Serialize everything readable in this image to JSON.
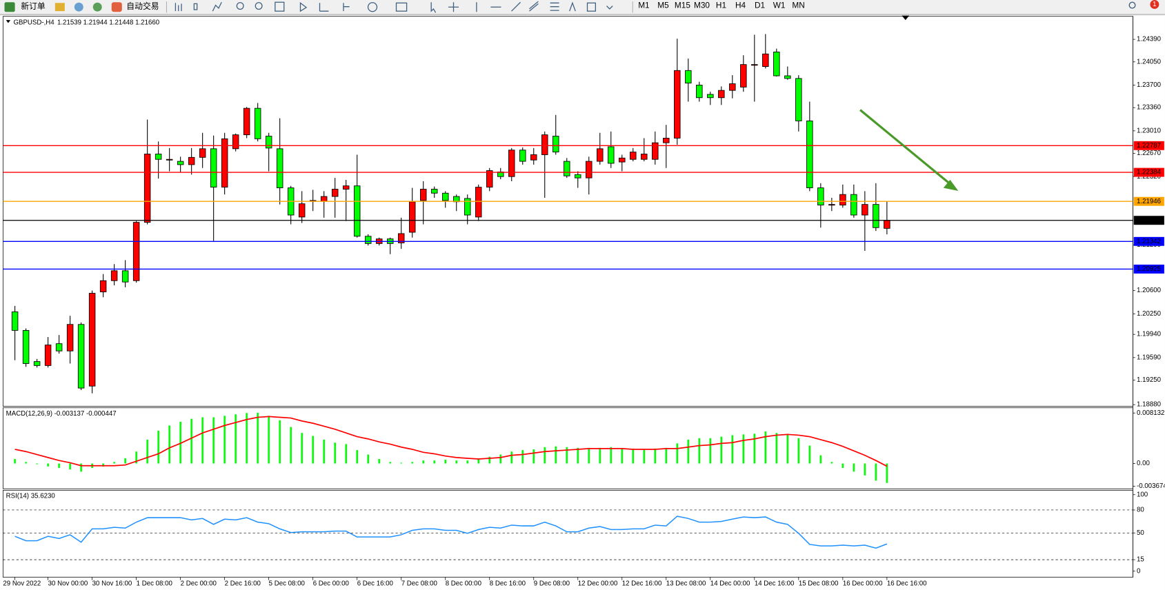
{
  "toolbar": {
    "new_order": "新订单",
    "auto_trading": "自动交易",
    "timeframes": [
      "M1",
      "M5",
      "M15",
      "M30",
      "H1",
      "H4",
      "D1",
      "W1",
      "MN"
    ],
    "notifications": "1"
  },
  "chart_data": [
    {
      "type": "candlestick",
      "title": "GBPUSD-,H4",
      "subtitle": "1.21539 1.21944 1.21448 1.21660",
      "categories": [
        "29 Nov 2022",
        null,
        null,
        "30 Nov 00:00",
        null,
        null,
        null,
        "30 Nov 16:00",
        null,
        null,
        null,
        "1 Dec 08:00",
        null,
        null,
        null,
        "2 Dec 00:00",
        null,
        null,
        null,
        "2 Dec 16:00",
        null,
        null,
        null,
        "5 Dec 08:00",
        null,
        null,
        null,
        "6 Dec 00:00",
        null,
        null,
        null,
        "6 Dec 16:00",
        null,
        null,
        null,
        "7 Dec 08:00",
        null,
        null,
        null,
        "8 Dec 00:00",
        null,
        null,
        null,
        "8 Dec 16:00",
        null,
        null,
        null,
        "9 Dec 08:00",
        null,
        null,
        null,
        "12 Dec 00:00",
        null,
        null,
        null,
        "12 Dec 16:00",
        null,
        null,
        null,
        "13 Dec 08:00",
        null,
        null,
        null,
        "14 Dec 00:00",
        null,
        null,
        null,
        "14 Dec 16:00",
        null,
        null,
        null,
        "15 Dec 08:00",
        null,
        null,
        null,
        "16 Dec 00:00",
        null,
        null,
        null,
        "16 Dec 16:00"
      ],
      "open": [
        1.2028,
        1.2,
        1.1953,
        1.1947,
        1.198,
        1.1969,
        1.2009,
        1.1916,
        1.2058,
        1.2075,
        1.209,
        1.2075,
        1.2163,
        1.2266,
        1.2258,
        1.2255,
        1.225,
        1.2261,
        1.2274,
        1.2216,
        1.2274,
        1.2295,
        1.2335,
        1.2293,
        1.2274,
        1.2215,
        1.2171,
        1.2195,
        1.2195,
        1.2202,
        1.2213,
        1.2218,
        1.2142,
        1.2131,
        1.2138,
        1.2132,
        1.2148,
        1.2196,
        1.2213,
        1.2207,
        1.2202,
        1.2199,
        1.2171,
        1.2216,
        1.2239,
        1.2232,
        1.2272,
        1.2257,
        1.2265,
        1.2293,
        1.2255,
        1.2235,
        1.223,
        1.2255,
        1.2277,
        1.2254,
        1.2258,
        1.2258,
        1.2258,
        1.2283,
        1.229,
        1.2392,
        1.237,
        1.2356,
        1.2351,
        1.2362,
        1.2367,
        1.2401,
        1.2398,
        1.242,
        1.2384,
        1.238,
        1.2316,
        1.2215,
        1.219,
        1.2189,
        1.2205,
        1.2174,
        1.219,
        1.21539
      ],
      "high": [
        1.2037,
        1.2003,
        1.1957,
        1.199,
        1.1993,
        1.2022,
        1.2012,
        1.206,
        1.2085,
        1.21,
        1.2106,
        1.2165,
        1.2318,
        1.2285,
        1.2275,
        1.2262,
        1.2275,
        1.2298,
        1.2294,
        1.2298,
        1.2297,
        1.2337,
        1.2343,
        1.2298,
        1.232,
        1.2218,
        1.221,
        1.2212,
        1.221,
        1.223,
        1.2227,
        1.2265,
        1.2145,
        1.214,
        1.214,
        1.217,
        1.2215,
        1.2225,
        1.2217,
        1.221,
        1.2205,
        1.2205,
        1.222,
        1.2245,
        1.2245,
        1.2275,
        1.2276,
        1.2275,
        1.23,
        1.2325,
        1.226,
        1.224,
        1.2262,
        1.2298,
        1.23,
        1.2265,
        1.2275,
        1.229,
        1.23,
        1.231,
        1.244,
        1.241,
        1.2375,
        1.236,
        1.2368,
        1.2385,
        1.2415,
        1.2446,
        1.2447,
        1.2425,
        1.2398,
        1.2385,
        1.2345,
        1.2222,
        1.22,
        1.222,
        1.222,
        1.221,
        1.2222,
        1.21944
      ],
      "low": [
        1.1955,
        1.1945,
        1.1944,
        1.1944,
        1.1965,
        1.195,
        1.191,
        1.1905,
        1.205,
        1.2068,
        1.2065,
        1.2072,
        1.216,
        1.2229,
        1.224,
        1.2238,
        1.2235,
        1.2245,
        1.2135,
        1.2205,
        1.227,
        1.229,
        1.2285,
        1.224,
        1.219,
        1.216,
        1.2162,
        1.218,
        1.217,
        1.217,
        1.2165,
        1.214,
        1.2128,
        1.2128,
        1.2115,
        1.2123,
        1.214,
        1.216,
        1.22,
        1.2185,
        1.218,
        1.216,
        1.2165,
        1.221,
        1.2228,
        1.2225,
        1.225,
        1.225,
        1.22,
        1.2265,
        1.223,
        1.2215,
        1.2205,
        1.225,
        1.2245,
        1.224,
        1.2255,
        1.2255,
        1.225,
        1.2245,
        1.228,
        1.2345,
        1.2345,
        1.234,
        1.234,
        1.235,
        1.236,
        1.2345,
        1.2395,
        1.2383,
        1.2378,
        1.23,
        1.221,
        1.2155,
        1.218,
        1.2185,
        1.217,
        1.212,
        1.215,
        1.21448
      ],
      "close": [
        1.2,
        1.195,
        1.1947,
        1.1978,
        1.1969,
        1.2009,
        1.1913,
        1.2056,
        1.2075,
        1.209,
        1.2073,
        1.2163,
        1.2266,
        1.2258,
        1.2258,
        1.225,
        1.2261,
        1.2274,
        1.2216,
        1.2289,
        1.2295,
        1.2335,
        1.2289,
        1.2275,
        1.2215,
        1.2174,
        1.2191,
        1.2196,
        1.2202,
        1.2213,
        1.2218,
        1.2142,
        1.2131,
        1.2138,
        1.2131,
        1.2146,
        1.2194,
        1.2213,
        1.2207,
        1.2196,
        1.2194,
        1.2174,
        1.2216,
        1.2241,
        1.2232,
        1.2272,
        1.2255,
        1.2265,
        1.2295,
        1.2269,
        1.2233,
        1.223,
        1.2255,
        1.2274,
        1.2252,
        1.226,
        1.2269,
        1.2266,
        1.2283,
        1.229,
        1.2392,
        1.2373,
        1.2351,
        1.2351,
        1.2362,
        1.2372,
        1.2401,
        1.2401,
        1.2417,
        1.2384,
        1.238,
        1.2316,
        1.2215,
        1.2189,
        1.219,
        1.2205,
        1.2174,
        1.219,
        1.2155,
        1.2166
      ],
      "up_color": "#ff0000",
      "down_color": "#00ff00",
      "ylim": [
        1.18855,
        1.24737
      ],
      "yticks": [
        {
          "value": 1.2439,
          "label": "1.24390"
        },
        {
          "value": 1.2405,
          "label": "1.24050"
        },
        {
          "value": 1.237,
          "label": "1.23700"
        },
        {
          "value": 1.2336,
          "label": "1.23360"
        },
        {
          "value": 1.2301,
          "label": "1.23010"
        },
        {
          "value": 1.2267,
          "label": "1.22670"
        },
        {
          "value": 1.2232,
          "label": "1.22320"
        },
        {
          "value": 1.2129,
          "label": "1.21290"
        },
        {
          "value": 1.206,
          "label": "1.20600"
        },
        {
          "value": 1.2025,
          "label": "1.20250"
        },
        {
          "value": 1.1994,
          "label": "1.19940"
        },
        {
          "value": 1.1959,
          "label": "1.19590"
        },
        {
          "value": 1.1925,
          "label": "1.19250"
        },
        {
          "value": 1.1888,
          "label": "1.18880"
        }
      ],
      "hlines": [
        {
          "value": 1.22787,
          "color": "#ff0000"
        },
        {
          "value": 1.22384,
          "color": "#ff0000"
        },
        {
          "value": 1.21946,
          "color": "#ffa500"
        },
        {
          "value": 1.2166,
          "label": "1.21660",
          "color": "#000000"
        },
        {
          "value": 1.21342,
          "color": "#0000ff"
        },
        {
          "value": 1.20925,
          "color": "#0000ff"
        }
      ]
    },
    {
      "type": "macd",
      "title": "MACD(12,26,9) -0.003137 -0.000447",
      "series": [
        {
          "kind": "bar",
          "color": "#00ff00",
          "values": [
            0.00072,
            0.00024,
            -0.00012,
            -0.00048,
            -0.00072,
            -0.00096,
            -0.00132,
            -0.00072,
            -0.00048,
            0.00024,
            0.00084,
            0.00192,
            0.00384,
            0.00528,
            0.00612,
            0.00672,
            0.0072,
            0.00744,
            0.00744,
            0.00768,
            0.00792,
            0.00813,
            0.00816,
            0.00768,
            0.00696,
            0.00588,
            0.00492,
            0.00444,
            0.00384,
            0.00336,
            0.00312,
            0.00216,
            0.00144,
            0.00072,
            0.00024,
            0.00012,
            0.00024,
            0.00048,
            0.00048,
            0.0006,
            0.00048,
            0.00048,
            0.00072,
            0.00108,
            0.00144,
            0.00192,
            0.00216,
            0.00228,
            0.00264,
            0.00276,
            0.00264,
            0.00252,
            0.00252,
            0.00252,
            0.00264,
            0.0024,
            0.0024,
            0.00228,
            0.0024,
            0.00252,
            0.00324,
            0.00384,
            0.00408,
            0.00408,
            0.00432,
            0.00456,
            0.00468,
            0.0048,
            0.00516,
            0.00492,
            0.00468,
            0.00408,
            0.00288,
            0.00132,
            0.00024,
            -0.00072,
            -0.00132,
            -0.00192,
            -0.00276,
            -0.003137
          ]
        },
        {
          "kind": "line",
          "color": "#ff0000",
          "values": [
            0.00228,
            0.00192,
            0.00144,
            0.00096,
            0.00048,
            0.00012,
            -0.00036,
            -0.00036,
            -0.00036,
            -0.00036,
            -0.00024,
            0.00036,
            0.00096,
            0.00156,
            0.00252,
            0.00324,
            0.00408,
            0.00492,
            0.00552,
            0.00612,
            0.0066,
            0.00708,
            0.00744,
            0.00756,
            0.00744,
            0.00732,
            0.00684,
            0.00648,
            0.006,
            0.00552,
            0.00492,
            0.00432,
            0.00396,
            0.00348,
            0.00312,
            0.00264,
            0.00228,
            0.0018,
            0.00156,
            0.0012,
            0.00096,
            0.00084,
            0.00072,
            0.00084,
            0.00096,
            0.00132,
            0.00144,
            0.00168,
            0.00192,
            0.00204,
            0.00216,
            0.00228,
            0.0024,
            0.0024,
            0.0024,
            0.0024,
            0.00228,
            0.00228,
            0.00228,
            0.0024,
            0.0024,
            0.00264,
            0.00288,
            0.003,
            0.00324,
            0.00336,
            0.00372,
            0.00396,
            0.00432,
            0.00456,
            0.00468,
            0.00456,
            0.00432,
            0.00384,
            0.00336,
            0.00276,
            0.00204,
            0.00132,
            0.00048,
            -0.000447
          ]
        }
      ],
      "ylim": [
        -0.00407,
        0.00897
      ],
      "yticks": [
        0.008132,
        {
          "value": 0,
          "label": "0.00"
        },
        -0.003674
      ]
    },
    {
      "type": "rsi",
      "title": "RSI(14) 35.6230",
      "color": "#1e90ff",
      "values": [
        45.6,
        39.8,
        39.8,
        45.6,
        42.7,
        47.6,
        37.9,
        55.3,
        55.3,
        57.3,
        56.3,
        64.1,
        69.9,
        69.9,
        69.9,
        69.9,
        67.0,
        68.9,
        61.2,
        68.0,
        67.0,
        69.9,
        64.1,
        62.1,
        55.3,
        50.5,
        51.5,
        51.5,
        51.5,
        52.4,
        52.4,
        44.7,
        44.7,
        44.7,
        44.7,
        47.6,
        53.4,
        55.3,
        55.3,
        53.4,
        53.4,
        49.5,
        54.4,
        57.3,
        56.3,
        60.2,
        59.2,
        59.2,
        64.1,
        59.2,
        51.5,
        51.5,
        56.3,
        58.3,
        54.4,
        54.4,
        55.3,
        55.3,
        60.2,
        59.2,
        71.8,
        68.9,
        64.1,
        64.1,
        65.0,
        68.0,
        70.9,
        69.9,
        70.9,
        64.1,
        61.2,
        49.5,
        35.0,
        33.0,
        33.0,
        34.0,
        33.0,
        34.0,
        30.1,
        35.623
      ],
      "ylim": [
        -7.8,
        105.8
      ],
      "yticks": [
        100,
        80,
        50,
        15,
        0
      ],
      "levels": [
        80,
        50,
        15
      ]
    }
  ]
}
